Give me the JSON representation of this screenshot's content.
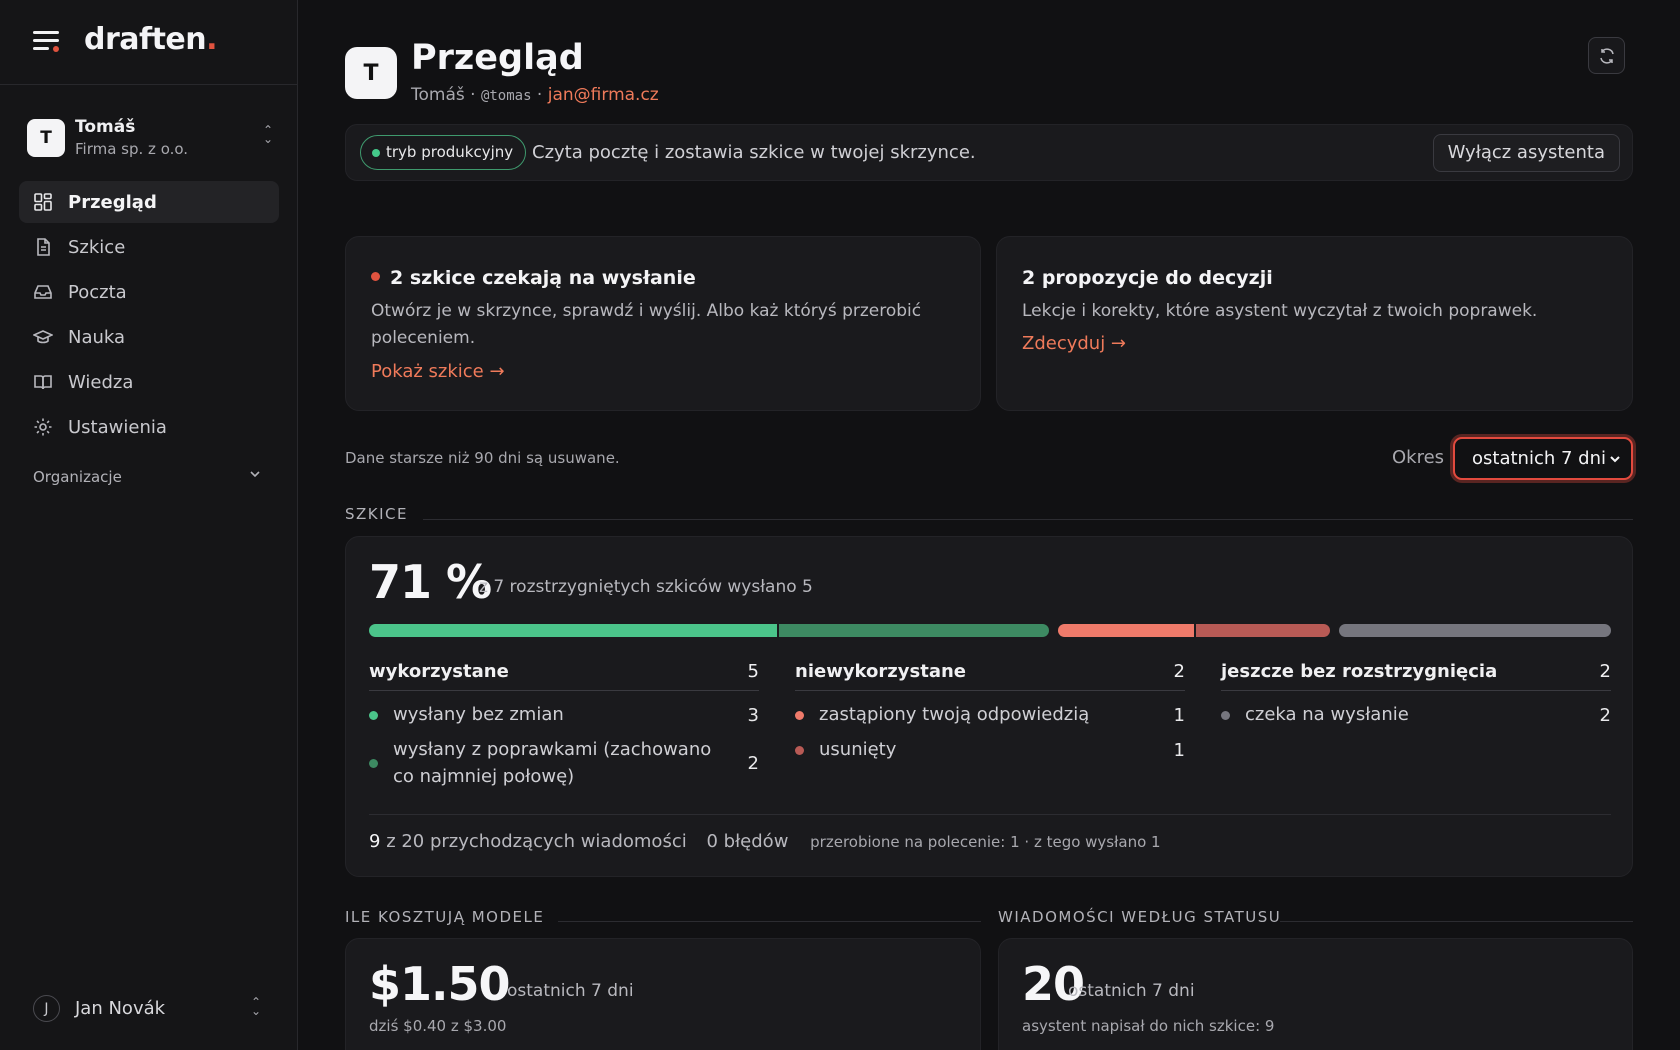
{
  "brand": {
    "logo_text": "draften",
    "logo_dot": "."
  },
  "account": {
    "avatar": "T",
    "name": "Tomáš",
    "org": "Firma sp. z o.o."
  },
  "nav": [
    {
      "label": "Przegląd",
      "icon": "grid-icon",
      "active": true
    },
    {
      "label": "Szkice",
      "icon": "document-icon"
    },
    {
      "label": "Poczta",
      "icon": "inbox-icon"
    },
    {
      "label": "Nauka",
      "icon": "graduation-cap-icon"
    },
    {
      "label": "Wiedza",
      "icon": "book-icon"
    },
    {
      "label": "Ustawienia",
      "icon": "gear-icon"
    }
  ],
  "organizations": {
    "label": "Organizacje"
  },
  "footer_user": {
    "avatar": "J",
    "name": "Jan Novák"
  },
  "header": {
    "avatar": "T",
    "title": "Przegląd",
    "name": "Tomáš",
    "handle": "@tomas",
    "email": "jan@firma.cz",
    "separator": " · "
  },
  "mode": {
    "badge": "tryb produkcyjny",
    "text": "Czyta pocztę i zostawia szkice w twojej skrzynce.",
    "button": "Wyłącz asystenta"
  },
  "notices": [
    {
      "title": "2 szkice czekają na wysłanie",
      "body": "Otwórz je w skrzynce, sprawdź i wyślij. Albo każ któryś przerobić poleceniem.",
      "link": "Pokaż szkice →"
    },
    {
      "title": "2 propozycje do decyzji",
      "body": "Lekcje i korekty, które asystent wyczytał z twoich poprawek.",
      "link": "Zdecyduj →"
    }
  ],
  "retention_note": "Dane starsze niż 90 dni są usuwane.",
  "period": {
    "label": "Okres",
    "selected": "ostatnich 7 dni"
  },
  "drafts_section": {
    "heading": "SZKICE",
    "percent": "71 %",
    "description": "z 7 rozstrzygniętych szkiców wysłano 5",
    "groups": [
      {
        "label": "wykorzystane",
        "count": "5",
        "items": [
          {
            "label": "wysłany bez zmian",
            "count": "3",
            "value": 3,
            "color": "#4bc48a"
          },
          {
            "label": "wysłany z poprawkami (zachowano co najmniej połowę)",
            "count": "2",
            "value": 2,
            "color": "#3d8a62"
          }
        ]
      },
      {
        "label": "niewykorzystane",
        "count": "2",
        "items": [
          {
            "label": "zastąpiony twoją odpowiedzią",
            "count": "1",
            "value": 1,
            "color": "#ef7a6a"
          },
          {
            "label": "usunięty",
            "count": "1",
            "value": 1,
            "color": "#b85a55"
          }
        ]
      },
      {
        "label": "jeszcze bez rozstrzygnięcia",
        "count": "2",
        "items": [
          {
            "label": "czeka na wysłanie",
            "count": "2",
            "value": 2,
            "color": "#76767e"
          }
        ]
      }
    ],
    "stats": {
      "incoming_count": "9",
      "incoming_text": "z 20 przychodzących wiadomości",
      "errors": "0 błędów",
      "reworked": "przerobione na polecenie: 1 · z tego wysłano 1"
    }
  },
  "cost_section": {
    "heading": "ILE KOSZTUJĄ MODELE",
    "amount": "$1.50",
    "period": "ostatnich 7 dni",
    "sub": "dziś $0.40 z $3.00"
  },
  "status_section": {
    "heading": "WIADOMOŚCI WEDŁUG STATUSU",
    "count": "20",
    "period": "ostatnich 7 dni",
    "sub": "asystent napisał do nich szkice: 9"
  }
}
